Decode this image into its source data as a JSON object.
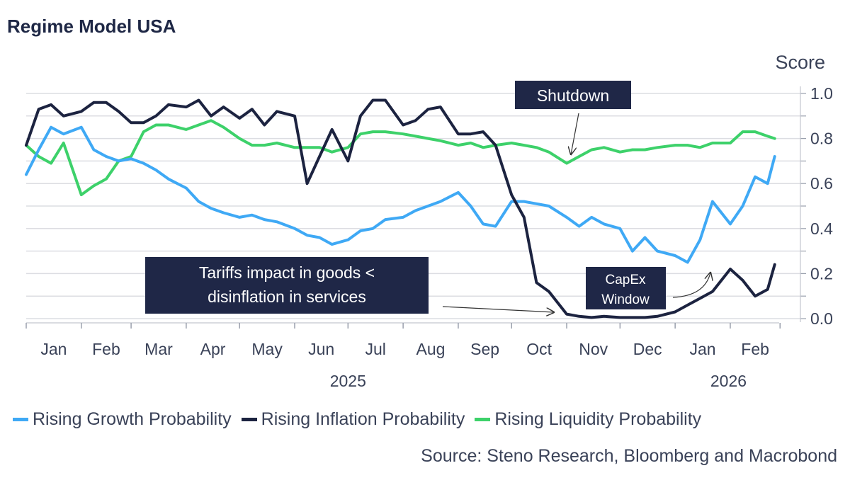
{
  "chart_data": {
    "type": "line",
    "title": "Regime Model USA",
    "ylabel": "Score",
    "ylim": [
      0,
      1.0
    ],
    "yticks": [
      "0.0",
      "0.2",
      "0.4",
      "0.6",
      "0.8",
      "1.0"
    ],
    "grid": true,
    "y_axis_side": "right",
    "legend_placement": "bottom",
    "x_month_labels": [
      "Jan",
      "Feb",
      "Mar",
      "Apr",
      "May",
      "Jun",
      "Jul",
      "Aug",
      "Sep",
      "Oct",
      "Nov",
      "Dec",
      "Jan",
      "Feb"
    ],
    "x_month_starts": [
      "2025-01-01",
      "2025-02-01",
      "2025-03-01",
      "2025-04-01",
      "2025-05-01",
      "2025-06-01",
      "2025-07-01",
      "2025-08-01",
      "2025-09-01",
      "2025-10-01",
      "2025-11-01",
      "2025-12-01",
      "2026-01-01",
      "2026-02-01",
      "2026-03-01"
    ],
    "x_year_labels": [
      {
        "label": "2025",
        "center": "2025-07-01"
      },
      {
        "label": "2026",
        "center": "2026-01-31"
      }
    ],
    "xlim": [
      "2025-01-01",
      "2026-03-01"
    ],
    "x": [
      "2025-01-01",
      "2025-01-08",
      "2025-01-15",
      "2025-01-22",
      "2025-02-01",
      "2025-02-08",
      "2025-02-15",
      "2025-02-22",
      "2025-03-01",
      "2025-03-08",
      "2025-03-15",
      "2025-03-22",
      "2025-04-01",
      "2025-04-08",
      "2025-04-15",
      "2025-04-22",
      "2025-05-01",
      "2025-05-08",
      "2025-05-15",
      "2025-05-22",
      "2025-06-01",
      "2025-06-08",
      "2025-06-15",
      "2025-06-22",
      "2025-07-01",
      "2025-07-08",
      "2025-07-15",
      "2025-07-22",
      "2025-08-01",
      "2025-08-08",
      "2025-08-15",
      "2025-08-22",
      "2025-09-01",
      "2025-09-08",
      "2025-09-15",
      "2025-09-22",
      "2025-10-01",
      "2025-10-08",
      "2025-10-15",
      "2025-10-22",
      "2025-11-01",
      "2025-11-08",
      "2025-11-15",
      "2025-11-22",
      "2025-12-01",
      "2025-12-08",
      "2025-12-15",
      "2025-12-22",
      "2026-01-01",
      "2026-01-08",
      "2026-01-15",
      "2026-01-22",
      "2026-02-01",
      "2026-02-08",
      "2026-02-15",
      "2026-02-22",
      "2026-02-26"
    ],
    "series": [
      {
        "name": "Rising Growth Probability",
        "color": "#3fa9f5",
        "values": [
          0.64,
          0.75,
          0.85,
          0.82,
          0.85,
          0.75,
          0.72,
          0.7,
          0.71,
          0.69,
          0.66,
          0.62,
          0.58,
          0.52,
          0.49,
          0.47,
          0.45,
          0.46,
          0.44,
          0.43,
          0.4,
          0.37,
          0.36,
          0.33,
          0.35,
          0.39,
          0.4,
          0.44,
          0.45,
          0.48,
          0.5,
          0.52,
          0.56,
          0.5,
          0.42,
          0.41,
          0.52,
          0.52,
          0.51,
          0.5,
          0.45,
          0.41,
          0.45,
          0.42,
          0.4,
          0.3,
          0.36,
          0.3,
          0.28,
          0.25,
          0.35,
          0.52,
          0.42,
          0.5,
          0.63,
          0.6,
          0.72
        ]
      },
      {
        "name": "Rising Inflation Probability",
        "color": "#1c2340",
        "values": [
          0.77,
          0.93,
          0.95,
          0.9,
          0.92,
          0.96,
          0.96,
          0.92,
          0.87,
          0.87,
          0.9,
          0.95,
          0.94,
          0.97,
          0.9,
          0.94,
          0.89,
          0.93,
          0.86,
          0.92,
          0.9,
          0.6,
          0.72,
          0.84,
          0.7,
          0.9,
          0.97,
          0.97,
          0.86,
          0.88,
          0.93,
          0.94,
          0.82,
          0.82,
          0.83,
          0.77,
          0.55,
          0.45,
          0.16,
          0.12,
          0.02,
          0.01,
          0.005,
          0.01,
          0.005,
          0.005,
          0.005,
          0.01,
          0.03,
          0.06,
          0.09,
          0.12,
          0.22,
          0.17,
          0.1,
          0.13,
          0.24
        ]
      },
      {
        "name": "Rising Liquidity Probability",
        "color": "#3dd16a",
        "values": [
          0.77,
          0.72,
          0.69,
          0.78,
          0.55,
          0.59,
          0.62,
          0.7,
          0.72,
          0.83,
          0.86,
          0.86,
          0.84,
          0.86,
          0.88,
          0.85,
          0.8,
          0.77,
          0.77,
          0.78,
          0.76,
          0.76,
          0.76,
          0.74,
          0.76,
          0.82,
          0.83,
          0.83,
          0.82,
          0.81,
          0.8,
          0.79,
          0.77,
          0.78,
          0.76,
          0.77,
          0.78,
          0.77,
          0.76,
          0.74,
          0.69,
          0.72,
          0.75,
          0.76,
          0.74,
          0.75,
          0.75,
          0.76,
          0.77,
          0.77,
          0.76,
          0.78,
          0.78,
          0.83,
          0.83,
          0.81,
          0.8
        ]
      }
    ],
    "annotations": [
      {
        "text": "Shutdown"
      },
      {
        "lines": [
          "Tariffs impact in goods <",
          "disinflation in services"
        ]
      },
      {
        "lines": [
          "CapEx",
          "Window"
        ]
      }
    ]
  },
  "source": "Source: Steno Research, Bloomberg and Macrobond"
}
